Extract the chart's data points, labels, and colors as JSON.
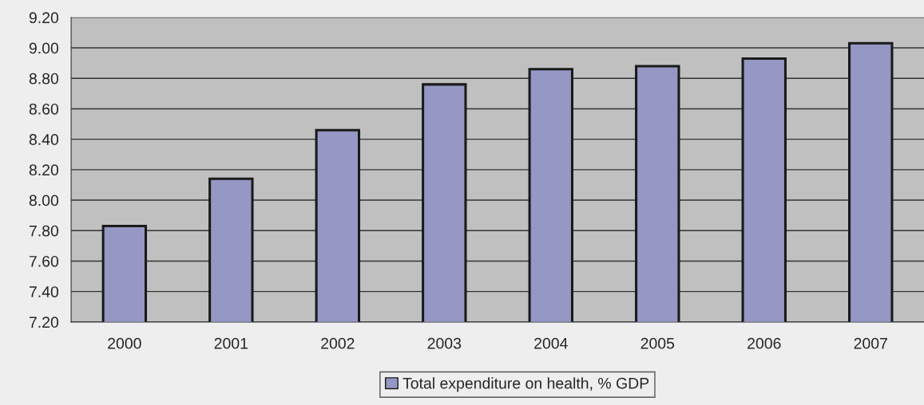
{
  "chart_data": {
    "type": "bar",
    "categories": [
      "2000",
      "2001",
      "2002",
      "2003",
      "2004",
      "2005",
      "2006",
      "2007"
    ],
    "series": [
      {
        "name": "Total expenditure on health, % GDP",
        "color": "#9597c4",
        "values": [
          7.83,
          8.14,
          8.46,
          8.76,
          8.86,
          8.88,
          8.93,
          9.03
        ]
      }
    ],
    "ylim": [
      7.2,
      9.2
    ],
    "yticks": [
      {
        "value": 7.2,
        "label": "7.20"
      },
      {
        "value": 7.4,
        "label": "7.40"
      },
      {
        "value": 7.6,
        "label": "7.60"
      },
      {
        "value": 7.8,
        "label": "7.80"
      },
      {
        "value": 8.0,
        "label": "8.00"
      },
      {
        "value": 8.2,
        "label": "8.20"
      },
      {
        "value": 8.4,
        "label": "8.40"
      },
      {
        "value": 8.6,
        "label": "8.60"
      },
      {
        "value": 8.8,
        "label": "8.80"
      },
      {
        "value": 9.0,
        "label": "9.00"
      },
      {
        "value": 9.2,
        "label": "9.20"
      }
    ],
    "grid": "y",
    "legend": "bottom"
  }
}
